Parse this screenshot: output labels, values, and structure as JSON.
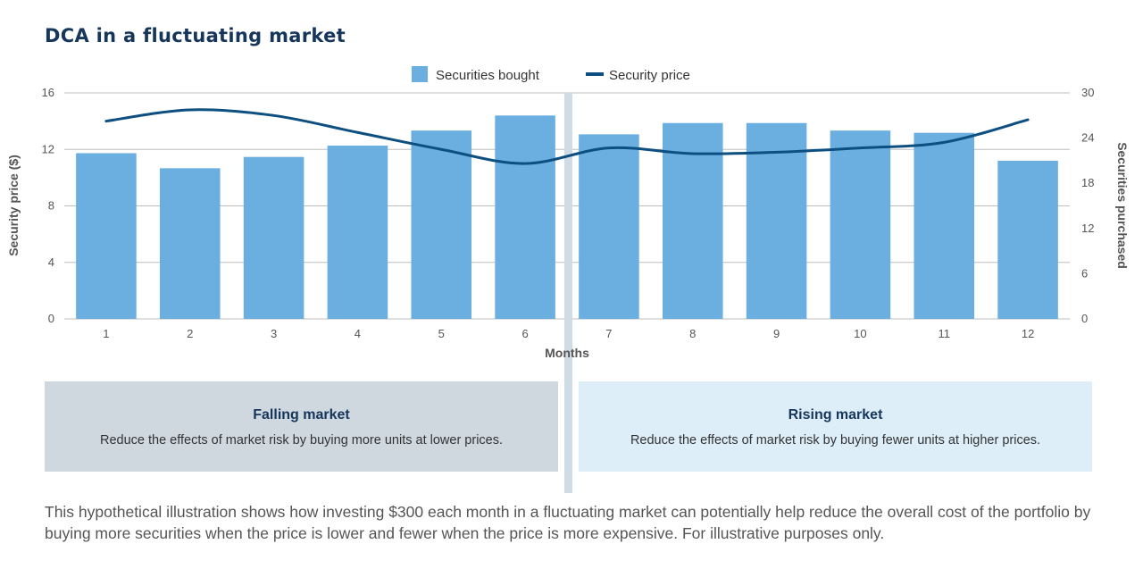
{
  "title": "DCA in a fluctuating market",
  "chart_data": {
    "type": "bar+line",
    "categories": [
      "1",
      "2",
      "3",
      "4",
      "5",
      "6",
      "7",
      "8",
      "9",
      "10",
      "11",
      "12"
    ],
    "xlabel": "Months",
    "ylabel_left": "Security price ($)",
    "ylabel_right": "Securities purchased",
    "ylim_left": [
      0,
      16
    ],
    "yticks_left": [
      0,
      4,
      8,
      12,
      16
    ],
    "ylim_right": [
      0,
      30
    ],
    "yticks_right": [
      0,
      6,
      12,
      18,
      24,
      30
    ],
    "grid": true,
    "legend": "top-center",
    "series": [
      {
        "name": "Securities bought",
        "type": "bar",
        "axis": "right",
        "color": "#6aafe0",
        "values": [
          22,
          20,
          21.5,
          23,
          25,
          27,
          24.5,
          26,
          26,
          25,
          24.7,
          21
        ]
      },
      {
        "name": "Security price",
        "type": "line",
        "axis": "left",
        "color": "#0d4f80",
        "values": [
          14,
          14.8,
          14.4,
          13.2,
          12,
          11,
          12.1,
          11.7,
          11.8,
          12.1,
          12.5,
          14.1
        ]
      }
    ]
  },
  "panels": {
    "left": {
      "heading": "Falling market",
      "text": "Reduce the effects of market risk by buying more units at lower prices."
    },
    "right": {
      "heading": "Rising market",
      "text": "Reduce the effects of market risk by buying fewer units at higher prices."
    }
  },
  "footnote": "This hypothetical illustration shows how investing $300 each month in a fluctuating market can potentially help reduce the overall cost of the portfolio by buying more securities when the price is lower and fewer when the price is more expensive. For illustrative purposes only."
}
